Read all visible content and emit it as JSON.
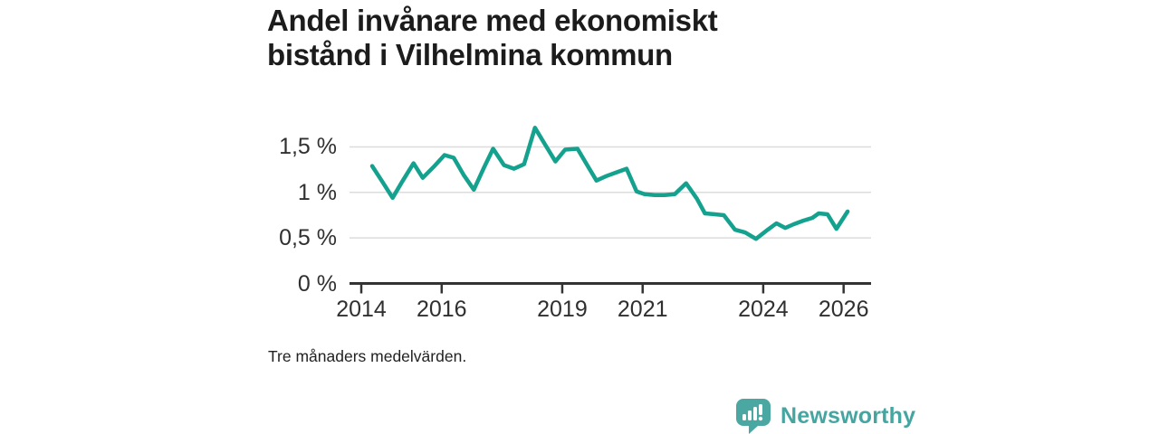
{
  "header": {
    "title": "Andel invånare med ekonomiskt bistånd i Vilhelmina kommun"
  },
  "footer": {
    "note": "Tre månaders medelvärden.",
    "brand": "Newsworthy"
  },
  "colors": {
    "line": "#14a28e",
    "brand_teal": "#4aa7a1",
    "title_text": "#1c1c1c",
    "axis_text": "#303030",
    "axis_line": "#333333",
    "gridline": "#dcdcdc"
  },
  "chart_data": {
    "type": "line",
    "title": "Andel invånare med ekonomiskt bistånd i Vilhelmina kommun",
    "note": "Tre månaders medelvärden.",
    "unit": "%",
    "grid": "horizontal",
    "legend": "none",
    "xlim": [
      2013.7,
      2026.7
    ],
    "ylim": [
      0,
      1.8
    ],
    "x_ticks": [
      {
        "value": 2014,
        "label": "2014"
      },
      {
        "value": 2016,
        "label": "2016"
      },
      {
        "value": 2019,
        "label": "2019"
      },
      {
        "value": 2021,
        "label": "2021"
      },
      {
        "value": 2024,
        "label": "2024"
      },
      {
        "value": 2026,
        "label": "2026"
      }
    ],
    "y_ticks": [
      {
        "value": 0,
        "label": "0 %"
      },
      {
        "value": 0.5,
        "label": "0,5 %"
      },
      {
        "value": 1,
        "label": "1 %"
      },
      {
        "value": 1.5,
        "label": "1,5 %"
      }
    ],
    "series": [
      {
        "name": "Andel invånare med ekonomiskt bistånd",
        "points": [
          [
            2014.27,
            1.29
          ],
          [
            2014.52,
            1.12
          ],
          [
            2014.78,
            0.94
          ],
          [
            2015.02,
            1.12
          ],
          [
            2015.3,
            1.32
          ],
          [
            2015.53,
            1.16
          ],
          [
            2015.8,
            1.28
          ],
          [
            2016.07,
            1.41
          ],
          [
            2016.3,
            1.38
          ],
          [
            2016.55,
            1.19
          ],
          [
            2016.8,
            1.03
          ],
          [
            2017.05,
            1.27
          ],
          [
            2017.28,
            1.48
          ],
          [
            2017.55,
            1.3
          ],
          [
            2017.8,
            1.26
          ],
          [
            2018.05,
            1.31
          ],
          [
            2018.32,
            1.71
          ],
          [
            2018.58,
            1.52
          ],
          [
            2018.83,
            1.34
          ],
          [
            2019.07,
            1.47
          ],
          [
            2019.38,
            1.48
          ],
          [
            2019.62,
            1.3
          ],
          [
            2019.85,
            1.13
          ],
          [
            2020.1,
            1.18
          ],
          [
            2020.35,
            1.22
          ],
          [
            2020.6,
            1.26
          ],
          [
            2020.85,
            1.01
          ],
          [
            2021.05,
            0.98
          ],
          [
            2021.3,
            0.97
          ],
          [
            2021.55,
            0.97
          ],
          [
            2021.8,
            0.98
          ],
          [
            2022.08,
            1.1
          ],
          [
            2022.35,
            0.93
          ],
          [
            2022.55,
            0.77
          ],
          [
            2022.8,
            0.76
          ],
          [
            2023.02,
            0.75
          ],
          [
            2023.3,
            0.59
          ],
          [
            2023.55,
            0.56
          ],
          [
            2023.82,
            0.49
          ],
          [
            2024.08,
            0.58
          ],
          [
            2024.33,
            0.66
          ],
          [
            2024.55,
            0.61
          ],
          [
            2024.76,
            0.65
          ],
          [
            2025.0,
            0.69
          ],
          [
            2025.22,
            0.72
          ],
          [
            2025.38,
            0.77
          ],
          [
            2025.6,
            0.76
          ],
          [
            2025.82,
            0.6
          ],
          [
            2026.1,
            0.79
          ]
        ]
      }
    ]
  }
}
